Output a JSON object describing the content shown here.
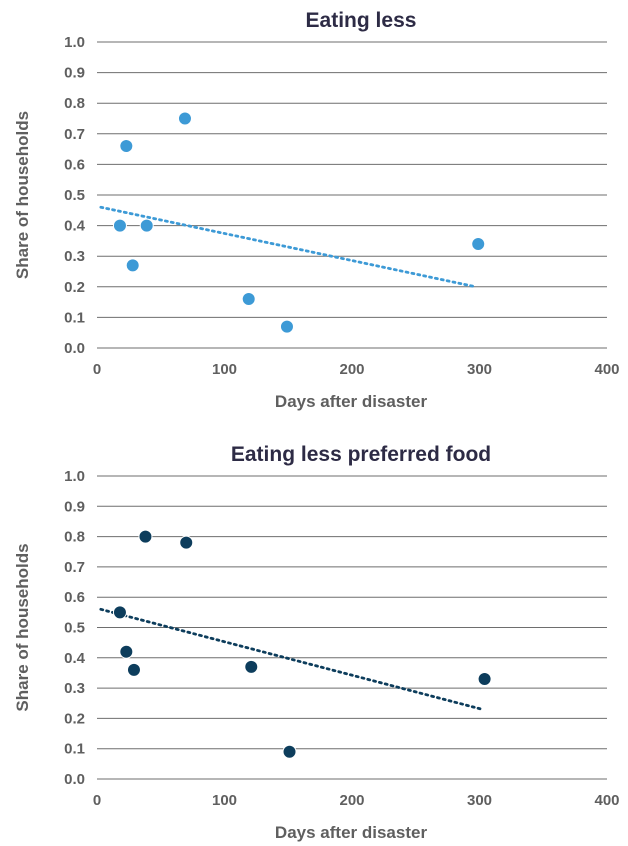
{
  "chart_data": [
    {
      "type": "scatter",
      "title": "Eating less",
      "xlabel": "Days after disaster",
      "ylabel": "Share of households",
      "xlim": [
        0,
        400
      ],
      "ylim": [
        0,
        1.0
      ],
      "xticks": [
        "0",
        "100",
        "200",
        "300",
        "400"
      ],
      "yticks": [
        "0.0",
        "0.1",
        "0.2",
        "0.3",
        "0.4",
        "0.5",
        "0.6",
        "0.7",
        "0.8",
        "0.9",
        "1.0"
      ],
      "grid": "horizontal",
      "color": "#3d9ad6",
      "points": [
        {
          "x": 18,
          "y": 0.4
        },
        {
          "x": 23,
          "y": 0.66
        },
        {
          "x": 28,
          "y": 0.27
        },
        {
          "x": 39,
          "y": 0.4
        },
        {
          "x": 69,
          "y": 0.75
        },
        {
          "x": 119,
          "y": 0.16
        },
        {
          "x": 149,
          "y": 0.07
        },
        {
          "x": 299,
          "y": 0.34
        }
      ],
      "trendline": {
        "style": "dotted",
        "x": [
          3,
          297
        ],
        "y": [
          0.46,
          0.2
        ]
      }
    },
    {
      "type": "scatter",
      "title": "Eating less preferred food",
      "xlabel": "Days after disaster",
      "ylabel": "Share of households",
      "xlim": [
        0,
        400
      ],
      "ylim": [
        0,
        1.0
      ],
      "xticks": [
        "0",
        "100",
        "200",
        "300",
        "400"
      ],
      "yticks": [
        "0.0",
        "0.1",
        "0.2",
        "0.3",
        "0.4",
        "0.5",
        "0.6",
        "0.7",
        "0.8",
        "0.9",
        "1.0"
      ],
      "grid": "horizontal",
      "color": "#0d3d5c",
      "points": [
        {
          "x": 18,
          "y": 0.55
        },
        {
          "x": 23,
          "y": 0.42
        },
        {
          "x": 29,
          "y": 0.36
        },
        {
          "x": 38,
          "y": 0.8
        },
        {
          "x": 70,
          "y": 0.78
        },
        {
          "x": 121,
          "y": 0.37
        },
        {
          "x": 151,
          "y": 0.09
        },
        {
          "x": 304,
          "y": 0.33
        }
      ],
      "trendline": {
        "style": "dotted",
        "x": [
          3,
          302
        ],
        "y": [
          0.56,
          0.23
        ]
      }
    }
  ]
}
